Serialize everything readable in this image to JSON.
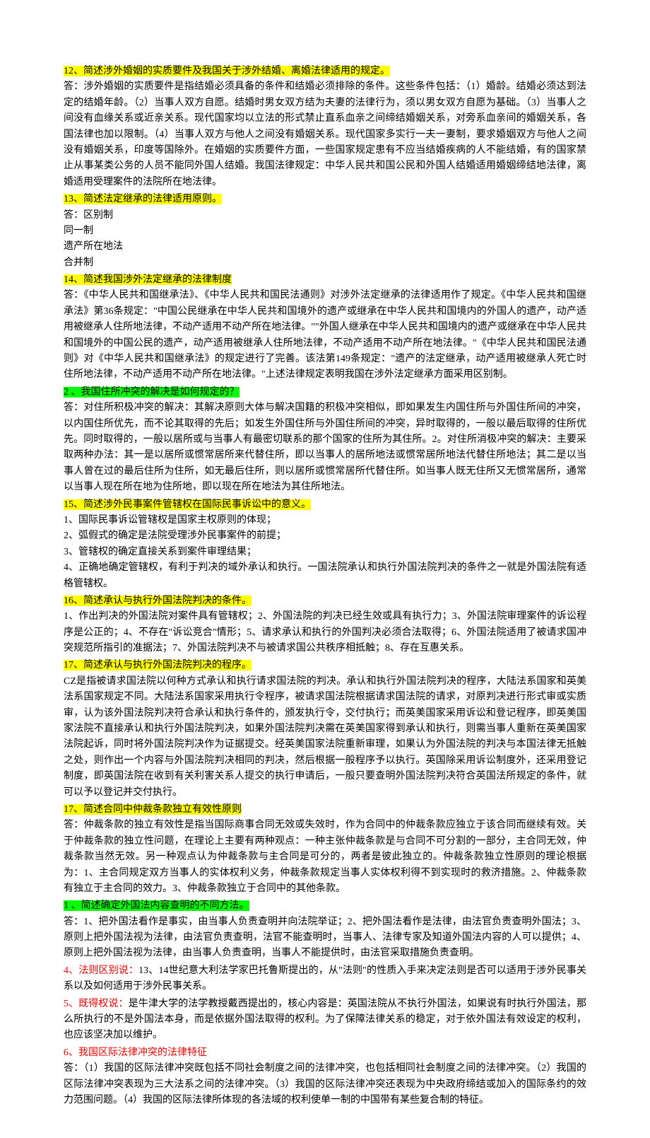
{
  "sections": [
    {
      "id": "q12",
      "heading": "12、简述涉外婚姻的实质要件及我国关于涉外结婚、离婚法律适用的规定。",
      "heading_style": "yellow",
      "answer": "答：涉外婚姻的实质要件是指结婚必须具备的条件和结婚必须排除的条件。这些条件包括：（1）婚龄。结婚必须达到法定的结婚年龄。（2）当事人双方自愿。结婚时男女双方结为夫妻的法律行为，须以男女双方自愿为基础。（3）当事人之间没有血缘关系或近亲关系。现代国家均以立法的形式禁止直系血亲之间缔结婚姻关系，对旁系血亲间的婚姻关系，各国法律也加以限制。（4）当事人双方与他人之间没有婚姻关系。现代国家多实行一夫一妻制，要求婚姻双方与他人之间没有婚姻关系，印度等国除外。在婚姻的实质要件方面，一些国家规定患有不应当结婚疾病的人不能结婚，有的国家禁止从事某类公务的人员不能同外国人结婚。我国法律规定：中华人民共和国公民和外国人结婚适用婚姻缔结地法律，离婚适用受理案件的法院所在地法律。"
    },
    {
      "id": "q13",
      "heading": "13、简述法定继承的法律适用原则。",
      "heading_style": "yellow",
      "answer": "答：区别制\n同一制\n遗产所在地法\n合并制"
    },
    {
      "id": "q14",
      "heading": "14、简述我国涉外法定继承的法律制度",
      "heading_style": "yellow",
      "answer": "答：《中华人民共和国继承法》、《中华人民共和国民法通则》对涉外法定继承的法律适用作了规定。《中华人民共和国继承法》第36条规定：\"中国公民继承在中华人民共和国境外的遗产或继承在中华人民共和国境内的外国人的遗产，动产适用被继承人住所地法律，不动产适用不动产所在地法律。\"\"外国人继承在中华人民共和国境内的遗产或继承在中华人民共和国境外的中国公民的遗产，动产适用被继承人住所地法律，不动产适用不动产所在地法律。\"《中华人民共和国民法通则》对《中华人民共和国继承法》的规定进行了完善。该法第149条规定：\"遗产的法定继承，动产适用被继承人死亡时住所地法律，不动产适用不动产所在地法律。\"上述法律规定表明我国在涉外法定继承方面采用区别制。"
    },
    {
      "id": "q2a",
      "heading": "2 、我国住所冲突的解决是如何规定的？",
      "heading_style": "green",
      "answer": "答：对住所积极冲突的解决：其解决原则大体与解决国籍的积极冲突相似，即如果发生内国住所与外国住所间的冲突，以内国住所优先，而不论其取得的先后；如发生外国住所与外国住所间的冲突，异时取得的，一般以最后取得的住所优先。同时取得的，一般以居所或与当事人有最密切联系的那个国家的住所为其住所。2。对住所消极冲突的解决：主要采取两种办法：其一是以居所或惯常居所来代替住所，即以当事人的居所地法或惯常居所地法代替住所地法；其二是以当事人曾在过的最后住所为住所，如无最后住所，则以居所或惯常居所代替住所。如当事人既无住所又无惯常居所，通常以当事人现在所在地为住所地，即以现在所在地法为其住所地法。"
    },
    {
      "id": "q15",
      "heading": "15、简述涉外民事案件管辖权在国际民事诉讼中的意义。",
      "heading_style": "yellow",
      "answer": "1、国际民事诉讼管辖权是国家主权原则的体现；\n2、弧假式的确定是法院受理涉外民事案件的前提；\n3、管辖权的确定直接关系到案件审理结果；\n4、正确地确定管辖权，有利于判决的域外承认和执行。一国法院承认和执行外国法院判决的条件之一就是外国法院有适格管辖权。"
    },
    {
      "id": "q16",
      "heading": "16、简述承认与执行外国法院判决的条件。",
      "heading_style": "yellow",
      "answer": "1、作出判决的外国法院对案件具有管辖权；2、外国法院的判决已经生效或具有执行力；3、外国法院审理案件的诉讼程序是公正的；4、不存在\"诉讼竞合\"情形；5、请求承认和执行的外国判决必须合法取得；6、外国法院适用了被请求国冲突规范所指引的准据法；7、外国法院判决不与被请求国公共秩序相抵触；8、存在互惠关系。"
    },
    {
      "id": "q17a",
      "heading": "17、简述承认与执行外国法院判决的程序。",
      "heading_style": "yellow",
      "answer": "CZ是指被请求国法院以何种方式承认和执行请求国法院的判决。承认和执行外国法院判决的程序，大陆法系国家和英美法系国家规定不同。大陆法系国家采用执行令程序，被请求国法院根据请求国法院的请求，对原判决进行形式审或实质审，认为该外国法院判决符合承认和执行条件的，颁发执行令，交付执行；而英美国家采用诉讼和登记程序，即英美国家法院不直接承认和执行外国法院判决，如果外国法院判决需在英美国家得到承认和执行，则需当事人重新在英美国家法院起诉，同时将外国法院判决作为证据提交。经英美国家法院重新审理，如果认为外国法院的判决与本国法律无抵触之处，则作出一个内容与外国法院判决相同的判决，然后根据一般程序予以执行。英国除采用诉讼制度外，还采用登记制度，即英国法院在收到有关利害关系人提交的执行申请后，一般只要查明外国法院判决符合英国法所规定的条件，就可以予以登记并交付执行。"
    },
    {
      "id": "q17b",
      "heading": "17、简述合同中仲裁条款独立有效性原则",
      "heading_style": "yellow",
      "answer": "答：仲裁条款的独立有效性是指当国际商事合同无效或失效时，作为合同中的仲裁条款应独立于该合同而继续有效。关于仲裁条款的独立性问题，在理论上主要有两种观点：一种主张仲裁条款是与合同不可分割的一部分，主合同无效，仲裁条款当然无效。另一种观点认为仲裁条款与主合同是可分的，两者是彼此独立的。仲裁条款独立性原则的理论根据为：1、主合同规定双方当事人的实体权利义务，仲裁条款规定当事人实体权利得不到实现时的救济措施。2、仲裁条款有独立于主合同的效力。3、仲裁条款独立于合同中的其他条款。"
    },
    {
      "id": "q1",
      "heading": "1 、简述确定外国法内容查明的不同方法。",
      "heading_style": "green",
      "answer": "答：1、把外国法看作是事实，由当事人负责查明并向法院举证；2、把外国法看作是法律，由法官负责查明外国法；3、原则上把外国法视为法律，由法官负责查明，法官不能查明时，当事人、法律专家及知道外国法内容的人可以提供；4、原则上把外国法视为法律，由当事人负责查明，当事人不能提供时，由法官采取措施负责查明。"
    },
    {
      "id": "q4",
      "heading_text": "4、法则区别说：",
      "heading_style": "red",
      "answer": "13、14世纪意大利法学家巴托鲁斯提出的，从\"法则\"的性质入手来决定法则是否可以适用于涉外民事关系以及如何适用于涉外民事关系。"
    },
    {
      "id": "q5",
      "heading_text": "5、既得权说：",
      "heading_style": "red",
      "answer": "是牛津大学的法学教授戴西提出的，核心内容是：英国法院从不执行外国法，如果说有时执行外国法，那么所执行的不是外国法本身，而是依据外国法取得的权利。为了保障法律关系的稳定，对于依外国法有效设定的权利，也应该坚决加以维护。"
    },
    {
      "id": "q6",
      "heading_text": "6、我国区际法律冲突的法律特征",
      "heading_style": "red",
      "answer": "答：（1）我国的区际法律冲突既包括不同社会制度之间的法律冲突，也包括相同社会制度之间的法律冲突。（2）我国的区际法律冲突表现为三大法系之间的法律冲突。（3）我国的区际法律冲突还表现为中央政府缔结或加入的国际条约的效力范围问题。（4）我国的区际法律所体现的各法域的权利使单一制的中国带有某些复合制的特征。"
    }
  ],
  "colors": {
    "highlight_yellow": "#ffff00",
    "highlight_green": "#00ff00",
    "text_black": "#000000",
    "text_red": "#ff0000",
    "background": "#ffffff"
  },
  "typography": {
    "font_family": "SimSun",
    "font_size": 14,
    "line_height": 1.6
  }
}
